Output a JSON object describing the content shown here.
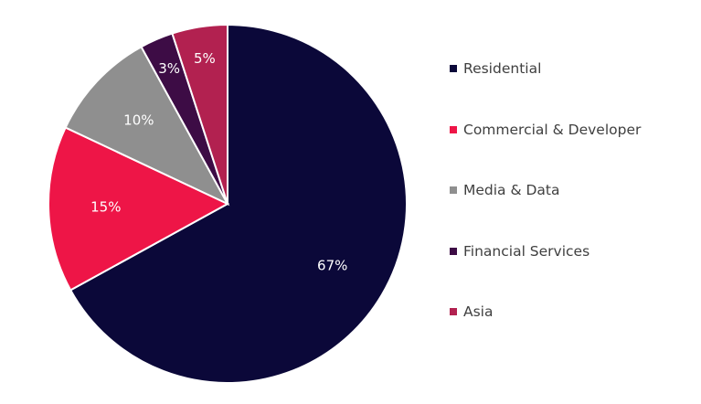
{
  "chart_data": {
    "type": "pie",
    "title": "",
    "legend_position": "right",
    "start_angle_deg": 0,
    "direction": "clockwise",
    "slices": [
      {
        "name": "Residential",
        "value": 67,
        "label": "67%",
        "color": "#0b0839"
      },
      {
        "name": "Commercial & Developer",
        "value": 15,
        "label": "15%",
        "color": "#ee1547"
      },
      {
        "name": "Media & Data",
        "value": 10,
        "label": "10%",
        "color": "#8f8f8f"
      },
      {
        "name": "Financial Services",
        "value": 3,
        "label": "3%",
        "color": "#3d0c45"
      },
      {
        "name": "Asia",
        "value": 5,
        "label": "5%",
        "color": "#b22150"
      }
    ]
  }
}
